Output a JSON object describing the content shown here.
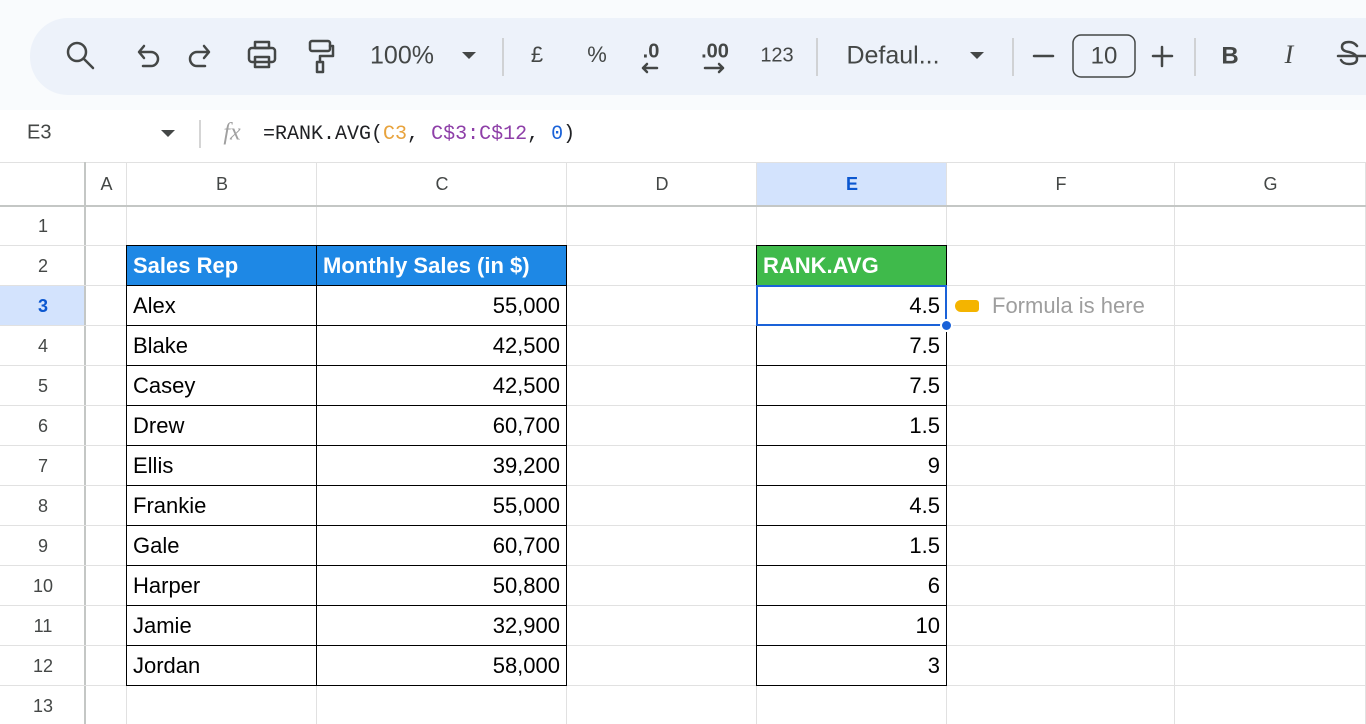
{
  "toolbar": {
    "zoom": "100%",
    "currency": "£",
    "percent": "%",
    "decrease_decimals": ".0",
    "increase_decimals": ".00",
    "number_format": "123",
    "font": "Defaul...",
    "font_size": "10",
    "bold": "B",
    "italic": "I"
  },
  "formula_bar": {
    "cell": "E3",
    "fx_label": "fx",
    "formula": [
      {
        "text": "=RANK.AVG(",
        "color": "#202124"
      },
      {
        "text": "C3",
        "color": "#e8a33d"
      },
      {
        "text": ", ",
        "color": "#202124"
      },
      {
        "text": "C$3:C$12",
        "color": "#8e3fa8"
      },
      {
        "text": ", ",
        "color": "#202124"
      },
      {
        "text": "0",
        "color": "#1a62d8"
      },
      {
        "text": ")",
        "color": "#202124"
      }
    ]
  },
  "sheet": {
    "columns": [
      "A",
      "B",
      "C",
      "D",
      "E",
      "F",
      "G"
    ],
    "rows": [
      1,
      2,
      3,
      4,
      5,
      6,
      7,
      8,
      9,
      10,
      11,
      12,
      13
    ],
    "selected_column": "E",
    "selected_row": 3
  },
  "table": {
    "header": [
      "Sales Rep",
      "Monthly Sales (in $)"
    ],
    "header_color": "#1e88e5",
    "rows": [
      [
        "Alex",
        "55,000"
      ],
      [
        "Blake",
        "42,500"
      ],
      [
        "Casey",
        "42,500"
      ],
      [
        "Drew",
        "60,700"
      ],
      [
        "Ellis",
        "39,200"
      ],
      [
        "Frankie",
        "55,000"
      ],
      [
        "Gale",
        "60,700"
      ],
      [
        "Harper",
        "50,800"
      ],
      [
        "Jamie",
        "32,900"
      ],
      [
        "Jordan",
        "58,000"
      ]
    ]
  },
  "rank": {
    "header": "RANK.AVG",
    "header_color": "#3fba4b",
    "values": [
      4.5,
      7.5,
      7.5,
      1.5,
      9,
      4.5,
      1.5,
      6,
      10,
      3
    ]
  },
  "note": "Formula is here"
}
